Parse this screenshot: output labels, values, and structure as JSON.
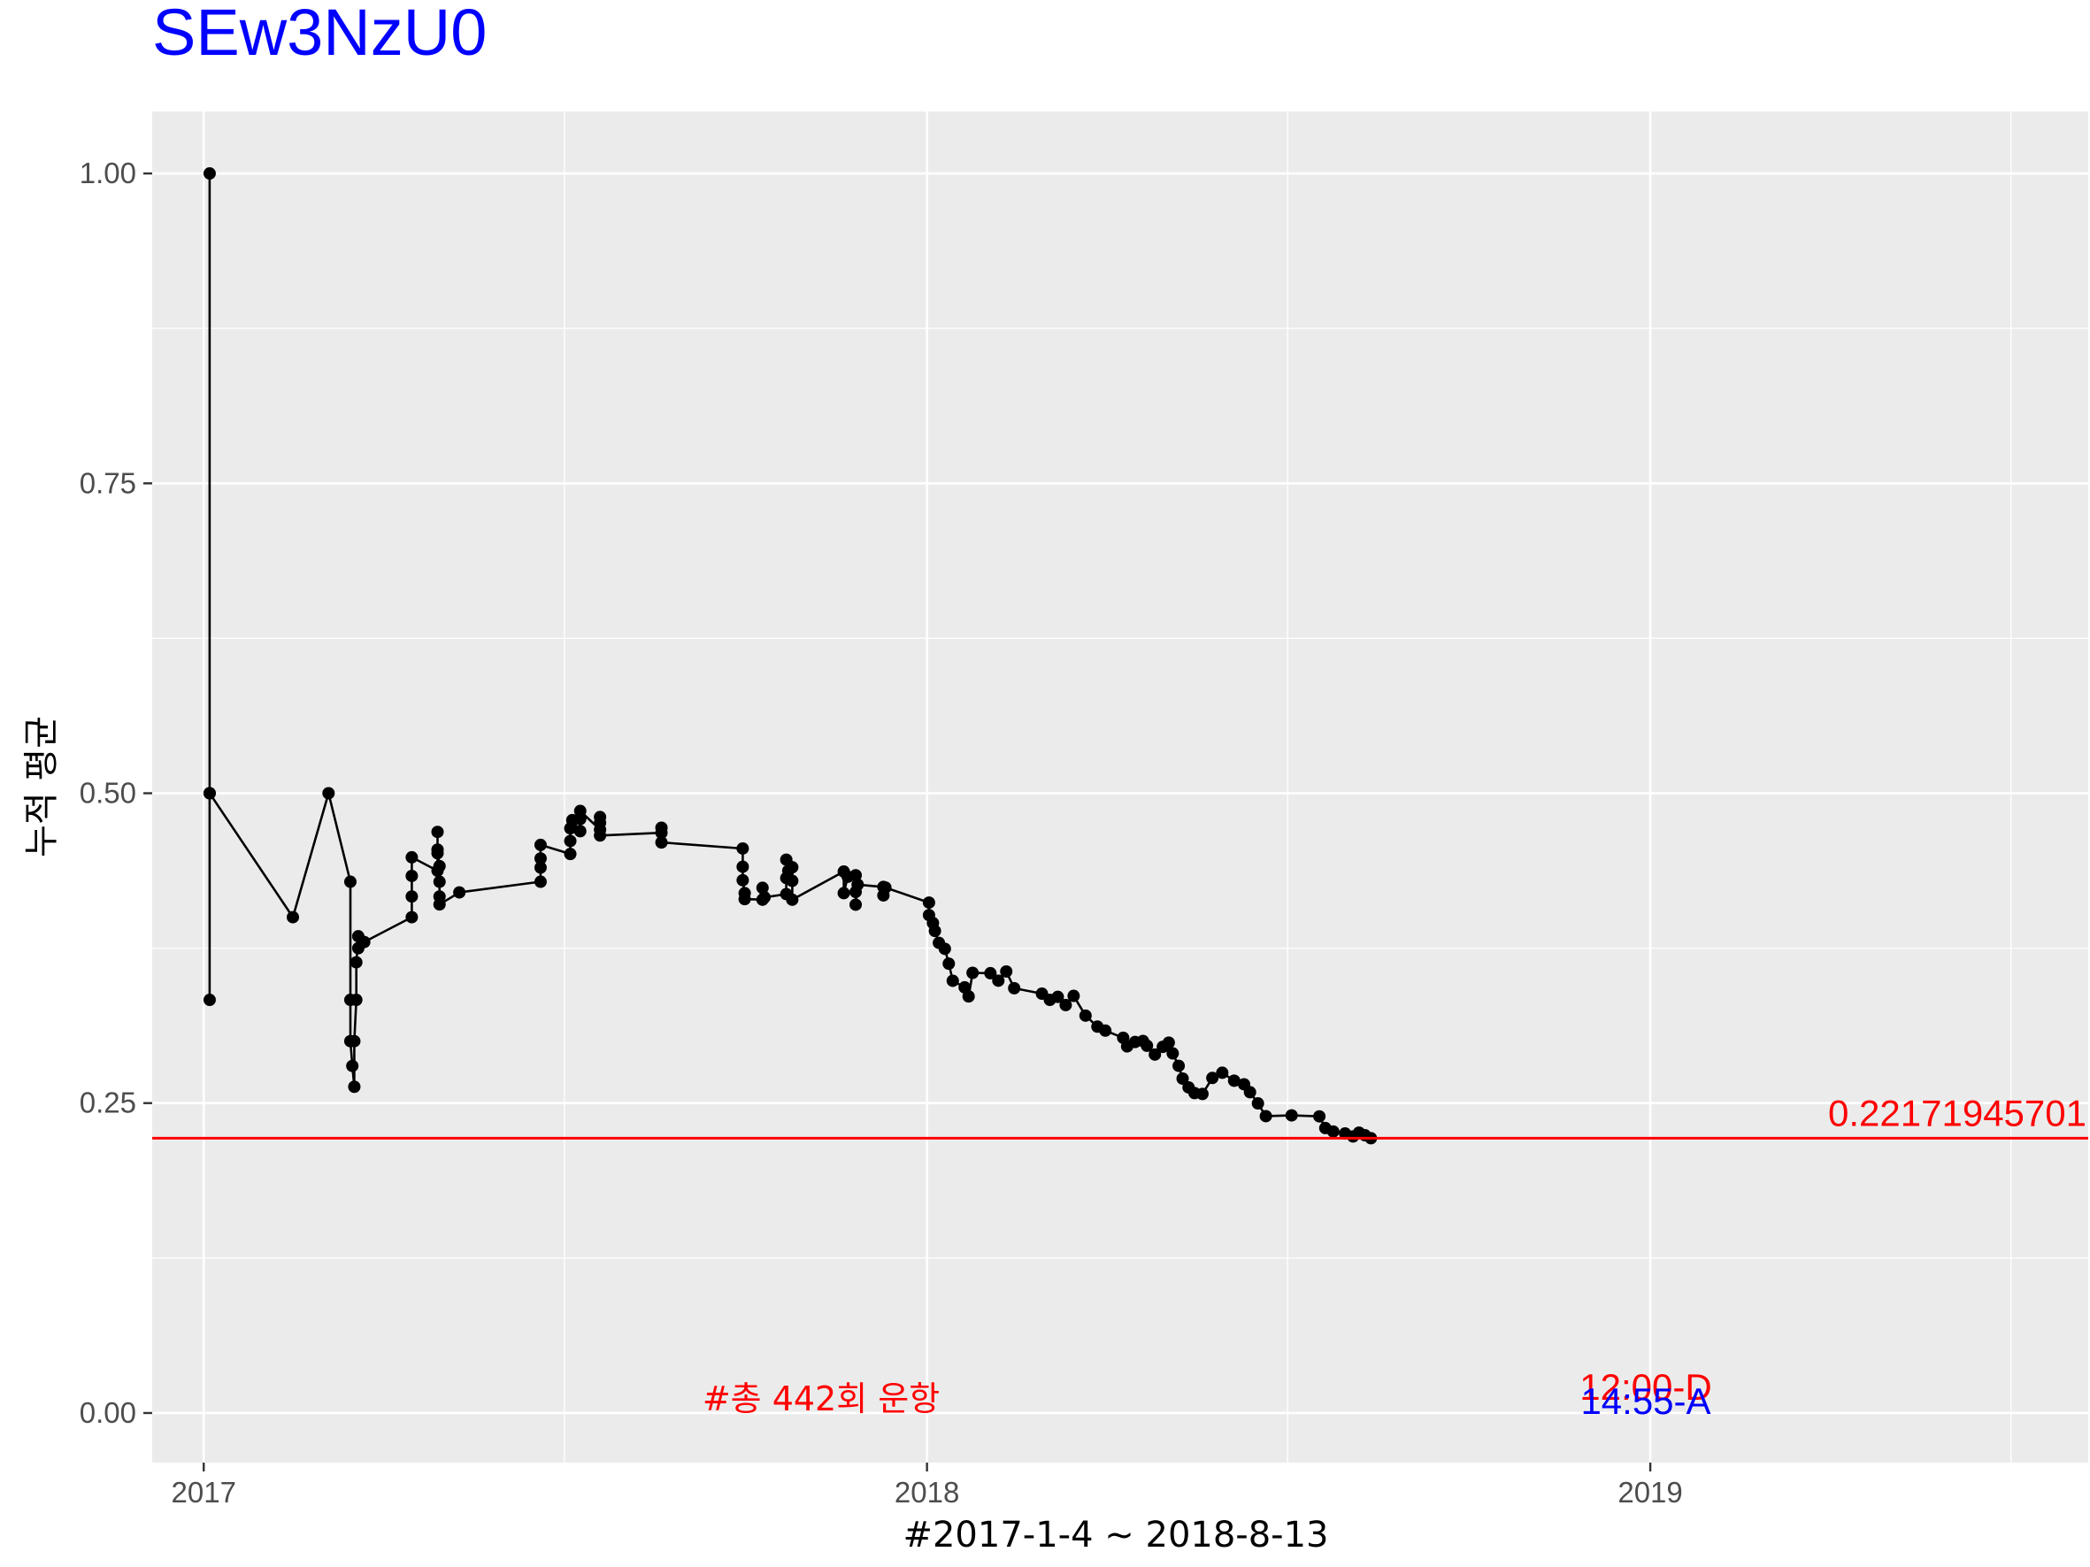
{
  "chart_data": {
    "type": "line",
    "title": "SEw3NzU0",
    "xlabel": "#2017-1-4 ~ 2018-8-13",
    "ylabel": "누적 평균",
    "x_ticks": [
      "2017",
      "2018",
      "2019"
    ],
    "y_ticks": [
      "0.00",
      "0.25",
      "0.50",
      "0.75",
      "1.00"
    ],
    "xlim": [
      "2016-12-06",
      "2019-08-10"
    ],
    "ylim": [
      -0.04,
      1.05
    ],
    "grid": true,
    "legend": "none",
    "reference_line": {
      "value": 0.22171945701,
      "label": "0.22171945701"
    },
    "annotations": {
      "total": "#총 442회 운항",
      "time_d": "12:00-D",
      "time_a": "14:55-A"
    },
    "colors": {
      "title": "#0000ff",
      "panel": "#ebebeb",
      "grid": "#ffffff",
      "line": "#000000",
      "reference": "#ff0000",
      "time_a": "#0000ff"
    },
    "series": [
      {
        "points": [
          [
            "2017-01-04",
            0.3333
          ],
          [
            "2017-01-04",
            0.5
          ],
          [
            "2017-01-04",
            1.0
          ],
          [
            "2017-01-04",
            0.5
          ],
          [
            "2017-02-15",
            0.4
          ],
          [
            "2017-03-05",
            0.5
          ],
          [
            "2017-03-16",
            0.4286
          ],
          [
            "2017-03-16",
            0.3333
          ],
          [
            "2017-03-16",
            0.3
          ],
          [
            "2017-03-17",
            0.28
          ],
          [
            "2017-03-18",
            0.2632
          ],
          [
            "2017-03-18",
            0.3
          ],
          [
            "2017-03-19",
            0.3333
          ],
          [
            "2017-03-19",
            0.3636
          ],
          [
            "2017-03-20",
            0.3846
          ],
          [
            "2017-03-20",
            0.375
          ],
          [
            "2017-03-23",
            0.38
          ],
          [
            "2017-04-16",
            0.4
          ],
          [
            "2017-04-16",
            0.4167
          ],
          [
            "2017-04-16",
            0.4333
          ],
          [
            "2017-04-16",
            0.4483
          ],
          [
            "2017-04-29",
            0.4375
          ],
          [
            "2017-04-29",
            0.4516
          ],
          [
            "2017-04-29",
            0.4688
          ],
          [
            "2017-04-29",
            0.4545
          ],
          [
            "2017-04-30",
            0.4412
          ],
          [
            "2017-04-30",
            0.4286
          ],
          [
            "2017-04-30",
            0.4167
          ],
          [
            "2017-04-30",
            0.4103
          ],
          [
            "2017-05-10",
            0.42
          ],
          [
            "2017-06-20",
            0.4286
          ],
          [
            "2017-06-20",
            0.44
          ],
          [
            "2017-06-20",
            0.4474
          ],
          [
            "2017-06-20",
            0.4583
          ],
          [
            "2017-07-05",
            0.451
          ],
          [
            "2017-07-05",
            0.4615
          ],
          [
            "2017-07-05",
            0.4717
          ],
          [
            "2017-07-06",
            0.4783
          ],
          [
            "2017-07-10",
            0.4694
          ],
          [
            "2017-07-10",
            0.4792
          ],
          [
            "2017-07-10",
            0.4857
          ],
          [
            "2017-07-20",
            0.4706
          ],
          [
            "2017-07-20",
            0.4762
          ],
          [
            "2017-07-20",
            0.4808
          ],
          [
            "2017-07-20",
            0.4659
          ],
          [
            "2017-08-20",
            0.4681
          ],
          [
            "2017-08-20",
            0.4722
          ],
          [
            "2017-08-20",
            0.4603
          ],
          [
            "2017-09-30",
            0.4554
          ],
          [
            "2017-09-30",
            0.4407
          ],
          [
            "2017-09-30",
            0.4298
          ],
          [
            "2017-10-01",
            0.4194
          ],
          [
            "2017-10-01",
            0.4146
          ],
          [
            "2017-10-10",
            0.4141
          ],
          [
            "2017-10-10",
            0.4237
          ],
          [
            "2017-10-11",
            0.416
          ],
          [
            "2017-10-22",
            0.4186
          ],
          [
            "2017-10-22",
            0.4316
          ],
          [
            "2017-10-22",
            0.4464
          ],
          [
            "2017-10-23",
            0.4375
          ],
          [
            "2017-10-25",
            0.4403
          ],
          [
            "2017-10-25",
            0.4293
          ],
          [
            "2017-10-25",
            0.4141
          ],
          [
            "2017-11-20",
            0.4368
          ],
          [
            "2017-11-20",
            0.4194
          ],
          [
            "2017-11-22",
            0.4326
          ],
          [
            "2017-11-26",
            0.4338
          ],
          [
            "2017-11-26",
            0.4204
          ],
          [
            "2017-11-26",
            0.4101
          ],
          [
            "2017-11-27",
            0.4263
          ],
          [
            "2017-12-10",
            0.4244
          ],
          [
            "2017-12-10",
            0.4176
          ],
          [
            "2017-12-11",
            0.4239
          ],
          [
            "2018-01-02",
            0.4118
          ],
          [
            "2018-01-02",
            0.4017
          ],
          [
            "2018-01-04",
            0.3953
          ],
          [
            "2018-01-05",
            0.3889
          ],
          [
            "2018-01-07",
            0.3793
          ],
          [
            "2018-01-10",
            0.3745
          ],
          [
            "2018-01-12",
            0.3625
          ],
          [
            "2018-01-14",
            0.3487
          ],
          [
            "2018-01-20",
            0.3434
          ],
          [
            "2018-01-22",
            0.3361
          ],
          [
            "2018-01-24",
            0.3551
          ],
          [
            "2018-02-02",
            0.3548
          ],
          [
            "2018-02-06",
            0.3488
          ],
          [
            "2018-02-10",
            0.3562
          ],
          [
            "2018-02-14",
            0.3427
          ],
          [
            "2018-02-28",
            0.3383
          ],
          [
            "2018-03-04",
            0.3333
          ],
          [
            "2018-03-08",
            0.3357
          ],
          [
            "2018-03-12",
            0.3291
          ],
          [
            "2018-03-16",
            0.3365
          ],
          [
            "2018-03-22",
            0.3206
          ],
          [
            "2018-03-28",
            0.3117
          ],
          [
            "2018-04-01",
            0.3085
          ],
          [
            "2018-04-10",
            0.3027
          ],
          [
            "2018-04-12",
            0.2958
          ],
          [
            "2018-04-16",
            0.2993
          ],
          [
            "2018-04-20",
            0.3001
          ],
          [
            "2018-04-22",
            0.2963
          ],
          [
            "2018-04-26",
            0.2892
          ],
          [
            "2018-04-30",
            0.2954
          ],
          [
            "2018-05-03",
            0.2988
          ],
          [
            "2018-05-05",
            0.2901
          ],
          [
            "2018-05-08",
            0.2801
          ],
          [
            "2018-05-10",
            0.2698
          ],
          [
            "2018-05-13",
            0.2627
          ],
          [
            "2018-05-16",
            0.2581
          ],
          [
            "2018-05-20",
            0.2574
          ],
          [
            "2018-05-25",
            0.2703
          ],
          [
            "2018-05-30",
            0.2745
          ],
          [
            "2018-06-05",
            0.2681
          ],
          [
            "2018-06-10",
            0.2652
          ],
          [
            "2018-06-13",
            0.2588
          ],
          [
            "2018-06-17",
            0.2498
          ],
          [
            "2018-06-21",
            0.2395
          ],
          [
            "2018-07-04",
            0.2401
          ],
          [
            "2018-07-18",
            0.2393
          ],
          [
            "2018-07-21",
            0.2299
          ],
          [
            "2018-07-25",
            0.2271
          ],
          [
            "2018-07-31",
            0.2255
          ],
          [
            "2018-08-04",
            0.2231
          ],
          [
            "2018-08-07",
            0.2262
          ],
          [
            "2018-08-10",
            0.2241
          ],
          [
            "2018-08-13",
            0.2217
          ]
        ]
      }
    ]
  }
}
